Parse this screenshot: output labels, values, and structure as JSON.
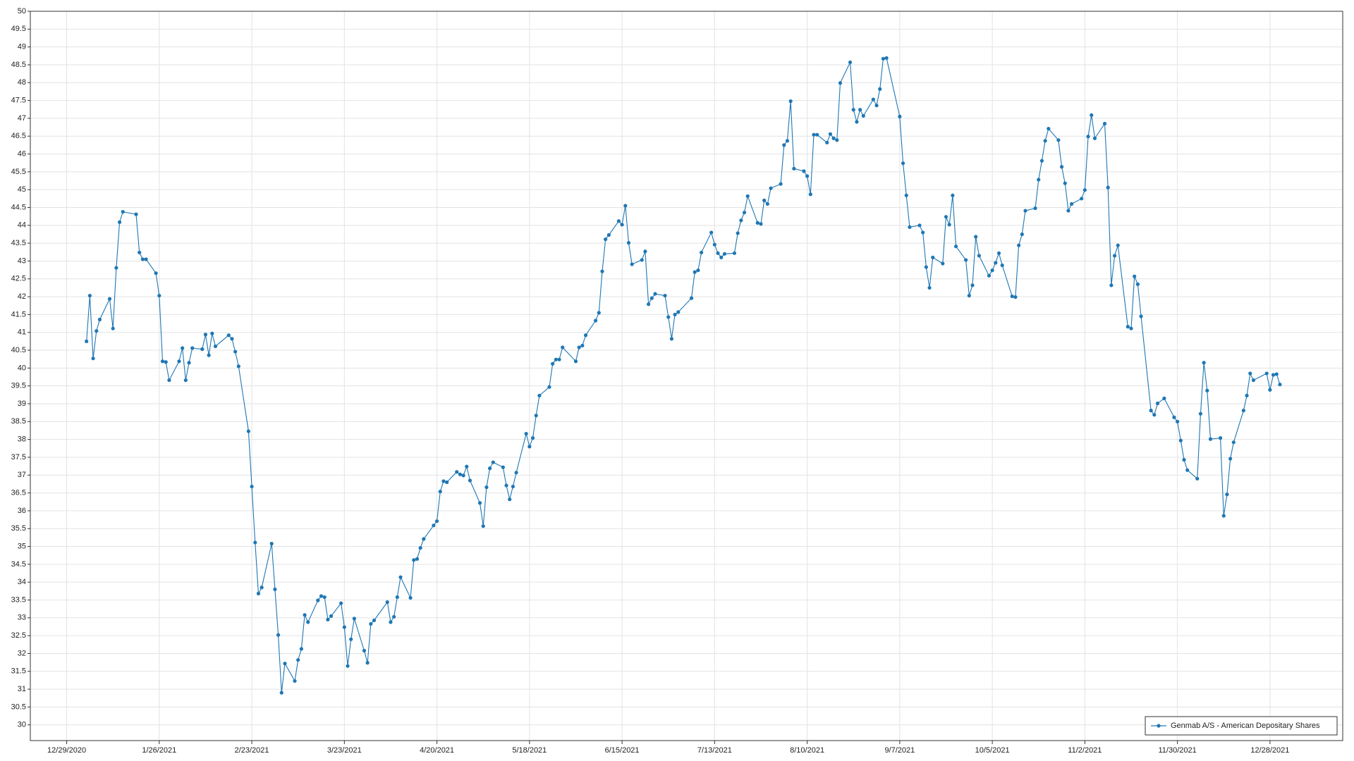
{
  "chart_data": {
    "type": "line",
    "series": [
      {
        "name": "Genmab A/S - American Depositary Shares",
        "color": "#1f77b4",
        "values": [
          40.75,
          42.03,
          40.27,
          41.04,
          41.36,
          41.94,
          41.11,
          42.81,
          44.09,
          44.38,
          44.31,
          43.24,
          43.05,
          43.05,
          42.66,
          42.03,
          40.19,
          40.17,
          39.66,
          40.19,
          40.56,
          39.66,
          40.15,
          40.56,
          40.53,
          40.94,
          40.36,
          40.97,
          40.61,
          40.92,
          40.82,
          40.46,
          40.05,
          38.23,
          36.68,
          35.11,
          33.68,
          33.85,
          35.08,
          33.8,
          32.52,
          30.9,
          31.72,
          31.23,
          31.82,
          32.13,
          33.08,
          32.88,
          33.49,
          33.61,
          33.58,
          32.95,
          33.05,
          33.41,
          32.74,
          31.65,
          32.4,
          32.98,
          32.08,
          31.74,
          32.83,
          32.93,
          33.44,
          32.88,
          33.03,
          33.58,
          34.14,
          33.56,
          34.62,
          34.65,
          34.96,
          35.21,
          35.59,
          35.71,
          36.54,
          36.83,
          36.8,
          37.09,
          37.02,
          36.99,
          37.24,
          36.85,
          36.22,
          35.57,
          36.66,
          37.19,
          37.36,
          37.22,
          36.71,
          36.32,
          36.68,
          37.07,
          38.16,
          37.8,
          38.04,
          38.67,
          39.23,
          39.47,
          40.12,
          40.24,
          40.24,
          40.58,
          40.19,
          40.58,
          40.63,
          40.92,
          41.33,
          41.55,
          42.71,
          43.61,
          43.73,
          44.12,
          44.02,
          44.55,
          43.51,
          42.91,
          43.03,
          43.27,
          41.79,
          41.96,
          42.08,
          42.03,
          41.43,
          40.82,
          41.5,
          41.57,
          41.96,
          42.69,
          42.74,
          43.24,
          43.8,
          43.46,
          43.22,
          43.1,
          43.2,
          43.22,
          43.78,
          44.14,
          44.36,
          44.82,
          44.07,
          44.04,
          44.7,
          44.6,
          45.04,
          45.16,
          46.25,
          46.37,
          47.48,
          45.59,
          45.52,
          45.38,
          44.87,
          46.54,
          46.54,
          46.32,
          46.56,
          46.44,
          46.39,
          47.99,
          48.57,
          47.24,
          46.9,
          47.24,
          47.07,
          47.53,
          47.36,
          47.82,
          48.67,
          48.69,
          47.05,
          45.74,
          44.84,
          43.95,
          44.0,
          43.8,
          42.83,
          42.25,
          43.1,
          42.93,
          44.24,
          44.02,
          44.84,
          43.41,
          43.03,
          42.03,
          42.32,
          43.68,
          43.15,
          42.59,
          42.74,
          42.95,
          43.22,
          42.88,
          42.01,
          41.99,
          43.44,
          43.75,
          44.41,
          44.48,
          45.28,
          45.81,
          46.37,
          46.71,
          46.39,
          45.64,
          45.18,
          44.41,
          44.6,
          44.75,
          44.99,
          46.49,
          47.09,
          46.44,
          46.85,
          45.06,
          42.32,
          43.15,
          43.44,
          41.16,
          41.11,
          42.57,
          42.35,
          41.45,
          38.81,
          38.69,
          39.01,
          39.15,
          38.62,
          38.5,
          37.97,
          37.43,
          37.14,
          36.9,
          38.72,
          40.15,
          39.37,
          38.01,
          38.04,
          35.86,
          36.46,
          37.46,
          37.92,
          38.81,
          39.23,
          39.85,
          39.66,
          39.85,
          39.39,
          39.81,
          39.83,
          39.54
        ]
      }
    ],
    "x": [
      "1/4/2021",
      "1/5/2021",
      "1/6/2021",
      "1/7/2021",
      "1/8/2021",
      "1/11/2021",
      "1/12/2021",
      "1/13/2021",
      "1/14/2021",
      "1/15/2021",
      "1/19/2021",
      "1/20/2021",
      "1/21/2021",
      "1/22/2021",
      "1/25/2021",
      "1/26/2021",
      "1/27/2021",
      "1/28/2021",
      "1/29/2021",
      "2/1/2021",
      "2/2/2021",
      "2/3/2021",
      "2/4/2021",
      "2/5/2021",
      "2/8/2021",
      "2/9/2021",
      "2/10/2021",
      "2/11/2021",
      "2/12/2021",
      "2/16/2021",
      "2/17/2021",
      "2/18/2021",
      "2/19/2021",
      "2/22/2021",
      "2/23/2021",
      "2/24/2021",
      "2/25/2021",
      "2/26/2021",
      "3/1/2021",
      "3/2/2021",
      "3/3/2021",
      "3/4/2021",
      "3/5/2021",
      "3/8/2021",
      "3/9/2021",
      "3/10/2021",
      "3/11/2021",
      "3/12/2021",
      "3/15/2021",
      "3/16/2021",
      "3/17/2021",
      "3/18/2021",
      "3/19/2021",
      "3/22/2021",
      "3/23/2021",
      "3/24/2021",
      "3/25/2021",
      "3/26/2021",
      "3/29/2021",
      "3/30/2021",
      "3/31/2021",
      "4/1/2021",
      "4/5/2021",
      "4/6/2021",
      "4/7/2021",
      "4/8/2021",
      "4/9/2021",
      "4/12/2021",
      "4/13/2021",
      "4/14/2021",
      "4/15/2021",
      "4/16/2021",
      "4/19/2021",
      "4/20/2021",
      "4/21/2021",
      "4/22/2021",
      "4/23/2021",
      "4/26/2021",
      "4/27/2021",
      "4/28/2021",
      "4/29/2021",
      "4/30/2021",
      "5/3/2021",
      "5/4/2021",
      "5/5/2021",
      "5/6/2021",
      "5/7/2021",
      "5/10/2021",
      "5/11/2021",
      "5/12/2021",
      "5/13/2021",
      "5/14/2021",
      "5/17/2021",
      "5/18/2021",
      "5/19/2021",
      "5/20/2021",
      "5/21/2021",
      "5/24/2021",
      "5/25/2021",
      "5/26/2021",
      "5/27/2021",
      "5/28/2021",
      "6/1/2021",
      "6/2/2021",
      "6/3/2021",
      "6/4/2021",
      "6/7/2021",
      "6/8/2021",
      "6/9/2021",
      "6/10/2021",
      "6/11/2021",
      "6/14/2021",
      "6/15/2021",
      "6/16/2021",
      "6/17/2021",
      "6/18/2021",
      "6/21/2021",
      "6/22/2021",
      "6/23/2021",
      "6/24/2021",
      "6/25/2021",
      "6/28/2021",
      "6/29/2021",
      "6/30/2021",
      "7/1/2021",
      "7/2/2021",
      "7/6/2021",
      "7/7/2021",
      "7/8/2021",
      "7/9/2021",
      "7/12/2021",
      "7/13/2021",
      "7/14/2021",
      "7/15/2021",
      "7/16/2021",
      "7/19/2021",
      "7/20/2021",
      "7/21/2021",
      "7/22/2021",
      "7/23/2021",
      "7/26/2021",
      "7/27/2021",
      "7/28/2021",
      "7/29/2021",
      "7/30/2021",
      "8/2/2021",
      "8/3/2021",
      "8/4/2021",
      "8/5/2021",
      "8/6/2021",
      "8/9/2021",
      "8/10/2021",
      "8/11/2021",
      "8/12/2021",
      "8/13/2021",
      "8/16/2021",
      "8/17/2021",
      "8/18/2021",
      "8/19/2021",
      "8/20/2021",
      "8/23/2021",
      "8/24/2021",
      "8/25/2021",
      "8/26/2021",
      "8/27/2021",
      "8/30/2021",
      "8/31/2021",
      "9/1/2021",
      "9/2/2021",
      "9/3/2021",
      "9/7/2021",
      "9/8/2021",
      "9/9/2021",
      "9/10/2021",
      "9/13/2021",
      "9/14/2021",
      "9/15/2021",
      "9/16/2021",
      "9/17/2021",
      "9/20/2021",
      "9/21/2021",
      "9/22/2021",
      "9/23/2021",
      "9/24/2021",
      "9/27/2021",
      "9/28/2021",
      "9/29/2021",
      "9/30/2021",
      "10/1/2021",
      "10/4/2021",
      "10/5/2021",
      "10/6/2021",
      "10/7/2021",
      "10/8/2021",
      "10/11/2021",
      "10/12/2021",
      "10/13/2021",
      "10/14/2021",
      "10/15/2021",
      "10/18/2021",
      "10/19/2021",
      "10/20/2021",
      "10/21/2021",
      "10/22/2021",
      "10/25/2021",
      "10/26/2021",
      "10/27/2021",
      "10/28/2021",
      "10/29/2021",
      "11/1/2021",
      "11/2/2021",
      "11/3/2021",
      "11/4/2021",
      "11/5/2021",
      "11/8/2021",
      "11/9/2021",
      "11/10/2021",
      "11/11/2021",
      "11/12/2021",
      "11/15/2021",
      "11/16/2021",
      "11/17/2021",
      "11/18/2021",
      "11/19/2021",
      "11/22/2021",
      "11/23/2021",
      "11/24/2021",
      "11/26/2021",
      "11/29/2021",
      "11/30/2021",
      "12/1/2021",
      "12/2/2021",
      "12/3/2021",
      "12/6/2021",
      "12/7/2021",
      "12/8/2021",
      "12/9/2021",
      "12/10/2021",
      "12/13/2021",
      "12/14/2021",
      "12/15/2021",
      "12/16/2021",
      "12/17/2021",
      "12/20/2021",
      "12/21/2021",
      "12/22/2021",
      "12/23/2021",
      "12/27/2021",
      "12/28/2021",
      "12/29/2021",
      "12/30/2021",
      "12/31/2021"
    ],
    "xlim": [
      "12/18/2020",
      "1/19/2022"
    ],
    "xticks": [
      "12/29/2020",
      "1/26/2021",
      "2/23/2021",
      "3/23/2021",
      "4/20/2021",
      "5/18/2021",
      "6/15/2021",
      "7/13/2021",
      "8/10/2021",
      "9/7/2021",
      "10/5/2021",
      "11/2/2021",
      "11/30/2021",
      "12/28/2021"
    ],
    "ylim": [
      29.56,
      50
    ],
    "yticks": [
      30,
      30.5,
      31,
      31.5,
      32,
      32.5,
      33,
      33.5,
      34,
      34.5,
      35,
      35.5,
      36,
      36.5,
      37,
      37.5,
      38,
      38.5,
      39,
      39.5,
      40,
      40.5,
      41,
      41.5,
      42,
      42.5,
      43,
      43.5,
      44,
      44.5,
      45,
      45.5,
      46,
      46.5,
      47,
      47.5,
      48,
      48.5,
      49,
      49.5,
      50
    ],
    "grid": true,
    "legend": "lower right"
  }
}
